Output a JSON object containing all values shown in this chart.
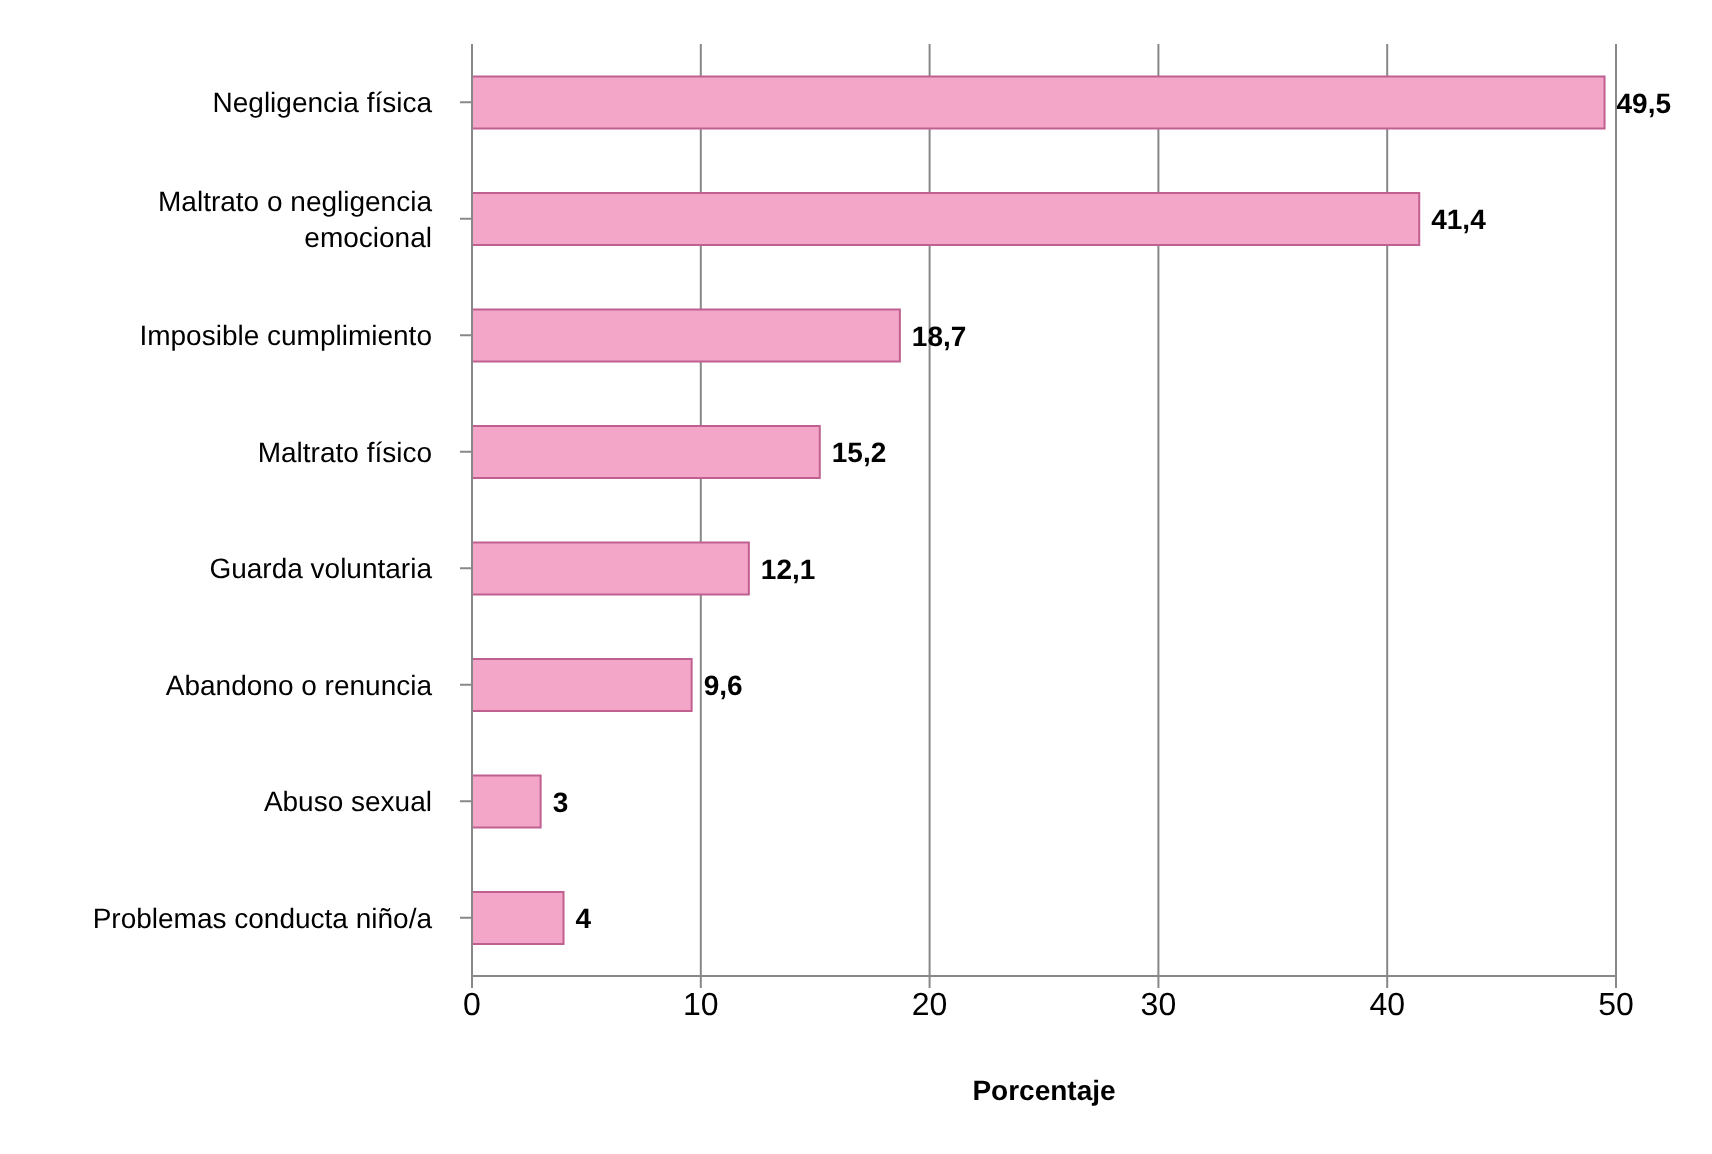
{
  "chart_data": {
    "type": "bar",
    "orientation": "horizontal",
    "xlabel": "Porcentaje",
    "categories": [
      "Negligencia física",
      "Maltrato o negligencia emocional",
      "Imposible cumplimiento",
      "Maltrato físico",
      "Guarda voluntaria",
      "Abandono o renuncia",
      "Abuso sexual",
      "Problemas conducta niño/a"
    ],
    "values": [
      49.5,
      41.4,
      18.7,
      15.2,
      12.1,
      9.6,
      3,
      4
    ],
    "value_labels": [
      "49,5",
      "41,4",
      "18,7",
      "15,2",
      "12,1",
      "9,6",
      "3",
      "4"
    ],
    "color": "#f4a6c8",
    "xlim": [
      0,
      50
    ],
    "xticks": [
      0,
      10,
      20,
      30,
      40,
      50
    ],
    "grid": "x"
  }
}
